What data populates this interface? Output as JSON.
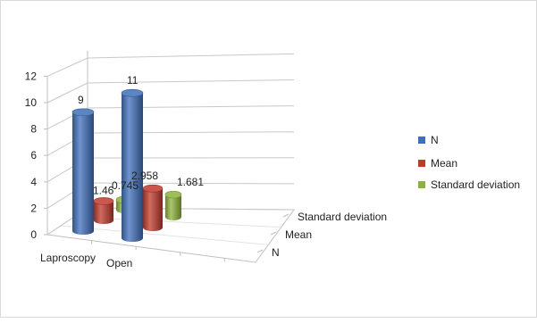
{
  "chart_data": {
    "type": "bar",
    "style": "3d-cylinder",
    "categories": [
      "Laproscopy",
      "Open"
    ],
    "depth_categories": [
      "N",
      "Mean",
      "Standard deviation"
    ],
    "series": [
      {
        "name": "N",
        "color": "#3f6fba",
        "values": [
          9,
          11
        ],
        "labels": [
          "9",
          "11"
        ]
      },
      {
        "name": "Mean",
        "color": "#c0392b",
        "values": [
          1.46,
          2.958
        ],
        "labels": [
          "1.46",
          "2.958"
        ]
      },
      {
        "name": "Standard deviation",
        "color": "#8cb33c",
        "values": [
          0.745,
          1.681
        ],
        "labels": [
          "0.745",
          "1.681"
        ]
      }
    ],
    "y_ticks": [
      "0",
      "2",
      "4",
      "6",
      "8",
      "10",
      "12"
    ],
    "ylim": [
      0,
      12
    ],
    "grid": true,
    "legend_position": "right"
  }
}
